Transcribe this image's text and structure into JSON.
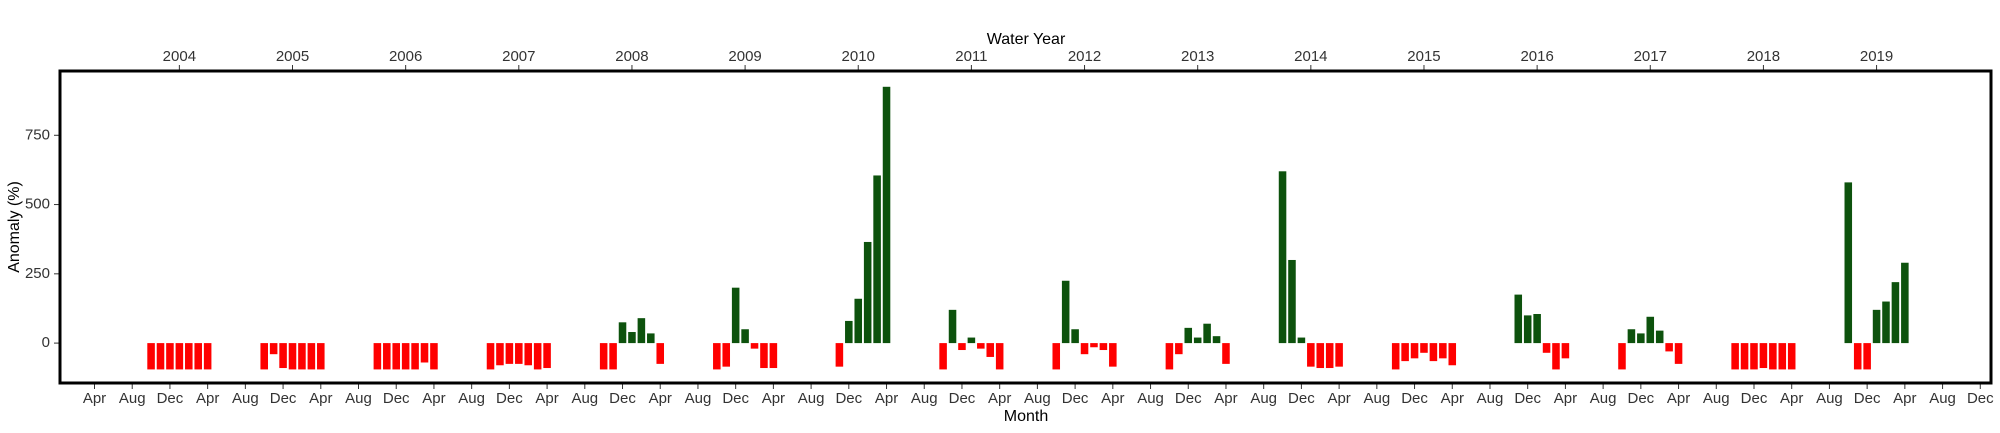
{
  "chart_data": {
    "type": "bar",
    "x2label": "Water Year",
    "xlabel": "Month",
    "ylabel": "Anomaly (%)",
    "categories": [
      null,
      null,
      null,
      "Apr",
      null,
      null,
      null,
      "Aug",
      null,
      null,
      null,
      "Dec",
      null,
      null,
      null,
      "Apr",
      null,
      null,
      null,
      "Aug",
      null,
      null,
      null,
      "Dec",
      null,
      null,
      null,
      "Apr",
      null,
      null,
      null,
      "Aug",
      null,
      null,
      null,
      "Dec",
      null,
      null,
      null,
      "Apr",
      null,
      null,
      null,
      "Aug",
      null,
      null,
      null,
      "Dec",
      null,
      null,
      null,
      "Apr",
      null,
      null,
      null,
      "Aug",
      null,
      null,
      null,
      "Dec",
      null,
      null,
      null,
      "Apr",
      null,
      null,
      null,
      "Aug",
      null,
      null,
      null,
      "Dec",
      null,
      null,
      null,
      "Apr",
      null,
      null,
      null,
      "Aug",
      null,
      null,
      null,
      "Dec",
      null,
      null,
      null,
      "Apr",
      null,
      null,
      null,
      "Aug",
      null,
      null,
      null,
      "Dec",
      null,
      null,
      null,
      "Apr",
      null,
      null,
      null,
      "Aug",
      null,
      null,
      null,
      "Dec",
      null,
      null,
      null,
      "Apr",
      null,
      null,
      null,
      "Aug",
      null,
      null,
      null,
      "Dec",
      null,
      null,
      null,
      "Apr",
      null,
      null,
      null,
      "Aug",
      null,
      null,
      null,
      "Dec",
      null,
      null,
      null,
      "Apr",
      null,
      null,
      null,
      "Aug",
      null,
      null,
      null,
      "Dec",
      null,
      null,
      null,
      "Apr",
      null,
      null,
      null,
      "Aug",
      null,
      null,
      null,
      "Dec",
      null,
      null,
      null,
      "Apr",
      null,
      null,
      null,
      "Aug",
      null,
      null,
      null,
      "Dec",
      null,
      null,
      null,
      "Apr",
      null,
      null,
      null,
      "Aug",
      null,
      null,
      null,
      "Dec",
      null,
      null,
      null,
      "Apr",
      null,
      null,
      null,
      "Aug",
      null,
      null,
      null,
      "Dec",
      null,
      null,
      null,
      "Apr",
      null,
      null,
      null,
      "Aug",
      null,
      null,
      null,
      "Dec"
    ],
    "x2categories": [
      null,
      null,
      null,
      null,
      null,
      null,
      null,
      null,
      null,
      null,
      null,
      null,
      "2004",
      null,
      null,
      null,
      null,
      null,
      null,
      null,
      null,
      null,
      null,
      null,
      "2005",
      null,
      null,
      null,
      null,
      null,
      null,
      null,
      null,
      null,
      null,
      null,
      "2006",
      null,
      null,
      null,
      null,
      null,
      null,
      null,
      null,
      null,
      null,
      null,
      "2007",
      null,
      null,
      null,
      null,
      null,
      null,
      null,
      null,
      null,
      null,
      null,
      "2008",
      null,
      null,
      null,
      null,
      null,
      null,
      null,
      null,
      null,
      null,
      null,
      "2009",
      null,
      null,
      null,
      null,
      null,
      null,
      null,
      null,
      null,
      null,
      null,
      "2010",
      null,
      null,
      null,
      null,
      null,
      null,
      null,
      null,
      null,
      null,
      null,
      "2011",
      null,
      null,
      null,
      null,
      null,
      null,
      null,
      null,
      null,
      null,
      null,
      "2012",
      null,
      null,
      null,
      null,
      null,
      null,
      null,
      null,
      null,
      null,
      null,
      "2013",
      null,
      null,
      null,
      null,
      null,
      null,
      null,
      null,
      null,
      null,
      null,
      "2014",
      null,
      null,
      null,
      null,
      null,
      null,
      null,
      null,
      null,
      null,
      null,
      "2015",
      null,
      null,
      null,
      null,
      null,
      null,
      null,
      null,
      null,
      null,
      null,
      "2016",
      null,
      null,
      null,
      null,
      null,
      null,
      null,
      null,
      null,
      null,
      null,
      "2017",
      null,
      null,
      null,
      null,
      null,
      null,
      null,
      null,
      null,
      null,
      null,
      "2018",
      null,
      null,
      null,
      null,
      null,
      null,
      null,
      null,
      null,
      null,
      null,
      "2019",
      null,
      null,
      null,
      null,
      null,
      null,
      null,
      null,
      null,
      null,
      null
    ],
    "values": [
      null,
      null,
      null,
      null,
      null,
      null,
      null,
      null,
      null,
      -95,
      -95,
      -95,
      -95,
      -95,
      -95,
      -95,
      null,
      null,
      null,
      null,
      null,
      -95,
      -40,
      -90,
      -95,
      -95,
      -95,
      -95,
      null,
      null,
      null,
      null,
      null,
      -95,
      -95,
      -95,
      -95,
      -95,
      -70,
      -95,
      null,
      null,
      null,
      null,
      null,
      -95,
      -80,
      -75,
      -75,
      -80,
      -95,
      -90,
      null,
      null,
      null,
      null,
      null,
      -95,
      -95,
      75,
      40,
      90,
      35,
      -75,
      null,
      null,
      null,
      null,
      null,
      -95,
      -85,
      200,
      50,
      -20,
      -90,
      -90,
      null,
      null,
      null,
      null,
      null,
      null,
      -85,
      80,
      160,
      365,
      605,
      925,
      null,
      null,
      null,
      null,
      null,
      -95,
      120,
      -25,
      20,
      -20,
      -50,
      -95,
      null,
      null,
      null,
      null,
      null,
      -95,
      225,
      50,
      -40,
      -15,
      -25,
      -85,
      null,
      null,
      null,
      null,
      null,
      -95,
      -40,
      55,
      20,
      70,
      25,
      -75,
      null,
      null,
      null,
      null,
      null,
      620,
      300,
      20,
      -85,
      -90,
      -90,
      -85,
      null,
      null,
      null,
      null,
      null,
      -95,
      -65,
      -55,
      -35,
      -65,
      -55,
      -80,
      null,
      null,
      null,
      null,
      null,
      null,
      175,
      100,
      105,
      -35,
      -95,
      -55,
      null,
      null,
      null,
      null,
      null,
      -95,
      50,
      35,
      95,
      45,
      -30,
      -75,
      null,
      null,
      null,
      null,
      null,
      -95,
      -95,
      -95,
      -90,
      -95,
      -95,
      -95,
      null,
      null,
      null,
      null,
      null,
      580,
      -95,
      -95,
      120,
      150,
      220,
      290,
      null,
      null,
      null,
      null,
      null,
      null,
      null,
      null
    ],
    "positive_color": "#0d520d",
    "negative_color": "#ff0000",
    "ylim": [
      -144,
      982
    ],
    "yticks": [
      0,
      250,
      500,
      750
    ],
    "grid": false
  }
}
